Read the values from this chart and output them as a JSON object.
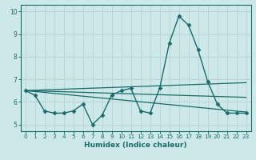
{
  "xlabel": "Humidex (Indice chaleur)",
  "bg_color": "#cce8e8",
  "grid_color": "#b8d4d4",
  "line_color": "#1a6b6b",
  "spine_color": "#1a6b6b",
  "xlim": [
    -0.5,
    23.5
  ],
  "ylim": [
    4.7,
    10.3
  ],
  "yticks": [
    5,
    6,
    7,
    8,
    9,
    10
  ],
  "xticks": [
    0,
    1,
    2,
    3,
    4,
    5,
    6,
    7,
    8,
    9,
    10,
    11,
    12,
    13,
    14,
    15,
    16,
    17,
    18,
    19,
    20,
    21,
    22,
    23
  ],
  "main_series": {
    "x": [
      0,
      1,
      2,
      3,
      4,
      5,
      6,
      7,
      8,
      9,
      10,
      11,
      12,
      13,
      14,
      15,
      16,
      17,
      18,
      19,
      20,
      21,
      22,
      23
    ],
    "y": [
      6.5,
      6.3,
      5.6,
      5.5,
      5.5,
      5.6,
      5.9,
      5.0,
      5.4,
      6.3,
      6.5,
      6.6,
      5.6,
      5.5,
      6.6,
      8.6,
      9.8,
      9.4,
      8.3,
      6.9,
      5.9,
      5.5,
      5.5,
      5.5
    ]
  },
  "linear_series": [
    {
      "x": [
        0,
        23
      ],
      "y": [
        6.5,
        6.85
      ]
    },
    {
      "x": [
        0,
        23
      ],
      "y": [
        6.5,
        5.55
      ]
    },
    {
      "x": [
        0,
        23
      ],
      "y": [
        6.5,
        6.2
      ]
    }
  ]
}
